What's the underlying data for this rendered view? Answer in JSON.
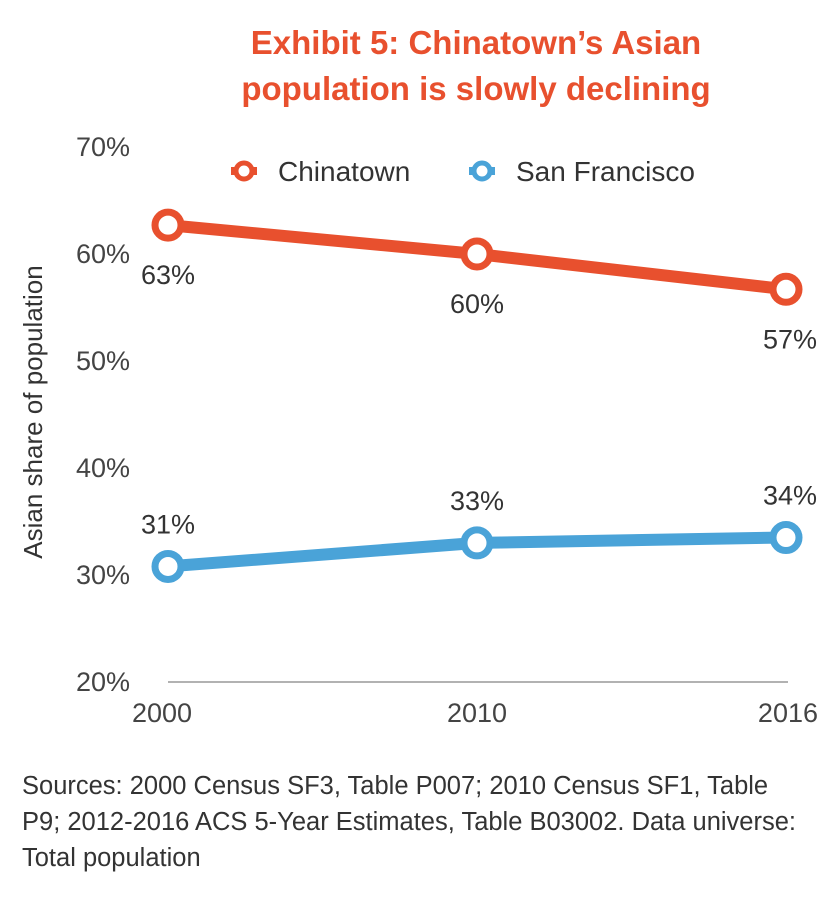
{
  "chart_data": {
    "type": "line",
    "title_lines": [
      "Exhibit 5: Chinatown’s Asian",
      "population is slowly declining"
    ],
    "ylabel": "Asian share of population",
    "xlabel": "",
    "x": [
      "2000",
      "2010",
      "2016"
    ],
    "ylim": [
      20,
      70
    ],
    "yticks": [
      20,
      30,
      40,
      50,
      60,
      70
    ],
    "ytick_labels": [
      "20%",
      "30%",
      "40%",
      "50%",
      "60%",
      "70%"
    ],
    "grid": false,
    "legend_position": "top",
    "series": [
      {
        "name": "Chinatown",
        "color": "#e8502e",
        "values": [
          62.7,
          60.0,
          56.7
        ],
        "labels": [
          "63%",
          "60%",
          "57%"
        ],
        "label_position": "below"
      },
      {
        "name": "San Francisco",
        "color": "#4aa3d8",
        "values": [
          30.8,
          33.0,
          33.5
        ],
        "labels": [
          "31%",
          "33%",
          "34%"
        ],
        "label_position": "above"
      }
    ]
  },
  "source_note": "Sources: 2000 Census SF3, Table P007; 2010 Census SF1, Table P9; 2012-2016 ACS 5-Year Estimates, Table B03002. Data universe: Total population"
}
